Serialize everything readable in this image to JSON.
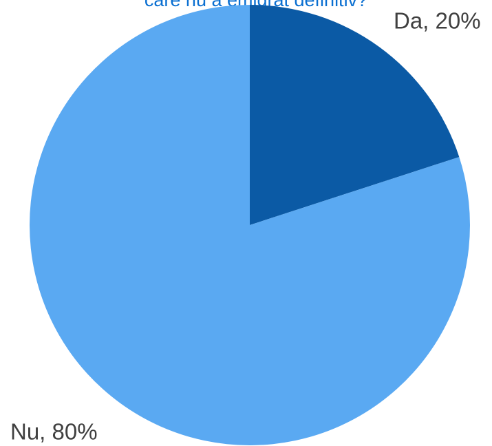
{
  "chart_data": {
    "type": "pie",
    "title": "care nu a emigrat definitiv?",
    "values": [
      20,
      80
    ],
    "value_labels": [
      "Da, 20%",
      "Nu, 80%"
    ],
    "colors": [
      "#0b5aa5",
      "#5aa9f2"
    ]
  }
}
